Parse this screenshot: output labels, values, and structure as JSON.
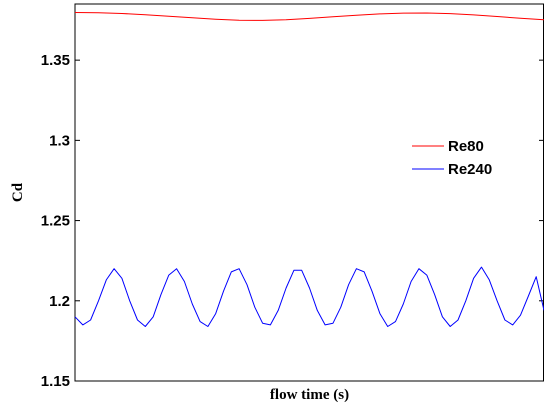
{
  "chart_data": {
    "type": "line",
    "title": "",
    "xlabel": "flow time (s)",
    "ylabel": "Cd",
    "ylim": [
      1.15,
      1.385
    ],
    "xlim": [
      0,
      1
    ],
    "yticks": [
      1.15,
      1.2,
      1.25,
      1.3,
      1.35
    ],
    "ytick_labels": [
      "1.15",
      "1.2",
      "1.25",
      "1.3",
      "1.35"
    ],
    "xticks": [],
    "grid": false,
    "legend": "center-right",
    "series": [
      {
        "name": "Re80",
        "color": "#ff0000",
        "x": [
          0.0,
          0.05,
          0.1,
          0.15,
          0.2,
          0.25,
          0.3,
          0.35,
          0.4,
          0.45,
          0.5,
          0.55,
          0.6,
          0.65,
          0.7,
          0.75,
          0.8,
          0.85,
          0.9,
          0.95,
          1.0
        ],
        "y": [
          1.3797,
          1.3796,
          1.3791,
          1.3783,
          1.3774,
          1.3764,
          1.3755,
          1.3749,
          1.3748,
          1.3752,
          1.376,
          1.377,
          1.378,
          1.3788,
          1.3793,
          1.3794,
          1.379,
          1.3782,
          1.3772,
          1.3761,
          1.3752
        ]
      },
      {
        "name": "Re240",
        "color": "#0000ff",
        "x": [
          0.0,
          0.0167,
          0.0333,
          0.05,
          0.0667,
          0.0833,
          0.1,
          0.1167,
          0.1333,
          0.15,
          0.1667,
          0.1833,
          0.2,
          0.2167,
          0.2333,
          0.25,
          0.2667,
          0.2833,
          0.3,
          0.3167,
          0.3333,
          0.35,
          0.3667,
          0.3833,
          0.4,
          0.4167,
          0.4333,
          0.45,
          0.4667,
          0.4833,
          0.5,
          0.5167,
          0.5333,
          0.55,
          0.5667,
          0.5833,
          0.6,
          0.6167,
          0.6333,
          0.65,
          0.6667,
          0.6833,
          0.7,
          0.7167,
          0.7333,
          0.75,
          0.7667,
          0.7833,
          0.8,
          0.8167,
          0.8333,
          0.85,
          0.8667,
          0.8833,
          0.9,
          0.9167,
          0.9333,
          0.95,
          0.9667,
          0.9833,
          1.0
        ],
        "y": [
          1.19,
          1.185,
          1.188,
          1.2,
          1.213,
          1.22,
          1.214,
          1.2,
          1.188,
          1.184,
          1.19,
          1.204,
          1.216,
          1.22,
          1.212,
          1.198,
          1.187,
          1.184,
          1.192,
          1.206,
          1.218,
          1.22,
          1.21,
          1.196,
          1.186,
          1.185,
          1.194,
          1.208,
          1.219,
          1.219,
          1.208,
          1.194,
          1.185,
          1.186,
          1.196,
          1.21,
          1.22,
          1.218,
          1.206,
          1.192,
          1.184,
          1.187,
          1.198,
          1.212,
          1.22,
          1.216,
          1.204,
          1.19,
          1.184,
          1.188,
          1.2,
          1.214,
          1.221,
          1.213,
          1.2,
          1.188,
          1.185,
          1.191,
          1.203,
          1.215,
          1.194
        ]
      }
    ]
  }
}
